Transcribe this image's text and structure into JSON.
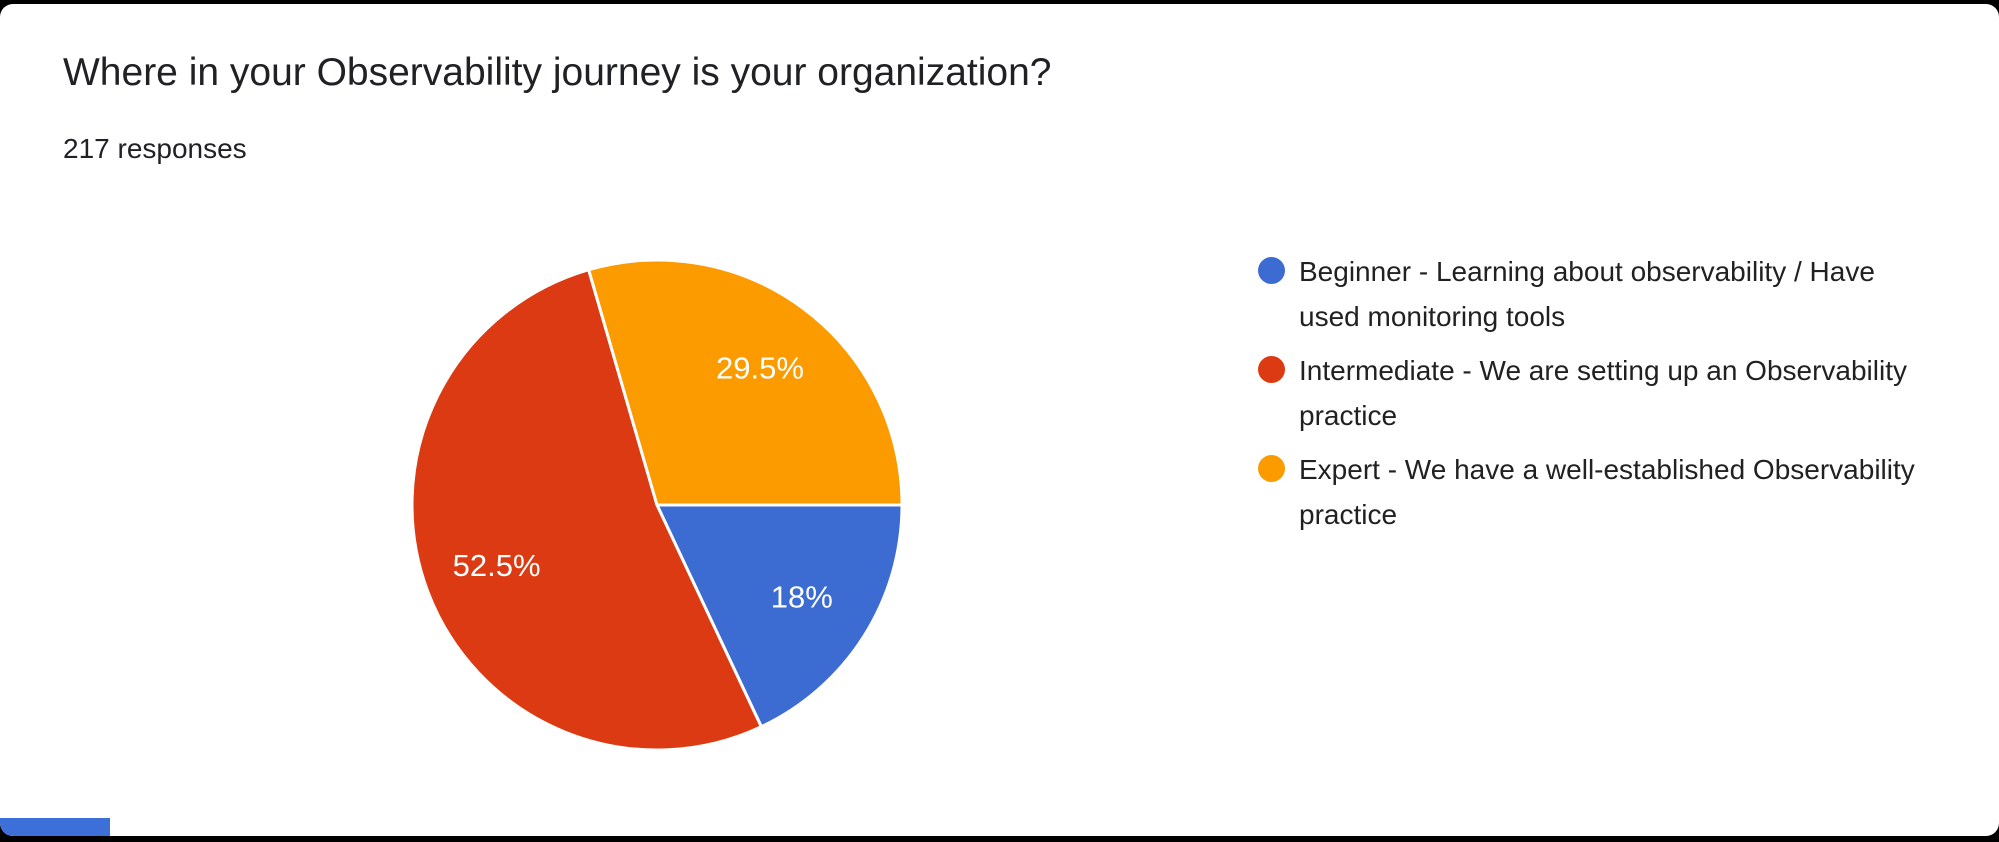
{
  "header": {
    "title": "Where in your Observability journey is your organization?",
    "responses": "217 responses"
  },
  "chart_data": {
    "type": "pie",
    "title": "Where in your Observability journey is your organization?",
    "subtitle": "217 responses",
    "total_responses": 217,
    "legend_position": "right",
    "start_angle_deg": 0,
    "direction": "clockwise",
    "slices": [
      {
        "label": "Beginner - Learning about observability / Have used monitoring tools",
        "percent": 18,
        "percent_label": "18%",
        "color": "#3C6BD2"
      },
      {
        "label": "Intermediate - We are setting up an Observability practice",
        "percent": 52.5,
        "percent_label": "52.5%",
        "color": "#DB3A12"
      },
      {
        "label": "Expert - We have a well-established Observability practice",
        "percent": 29.5,
        "percent_label": "29.5%",
        "color": "#FB9B00"
      }
    ]
  },
  "footer": {
    "clipped_element_color": "#3D6FD8"
  }
}
